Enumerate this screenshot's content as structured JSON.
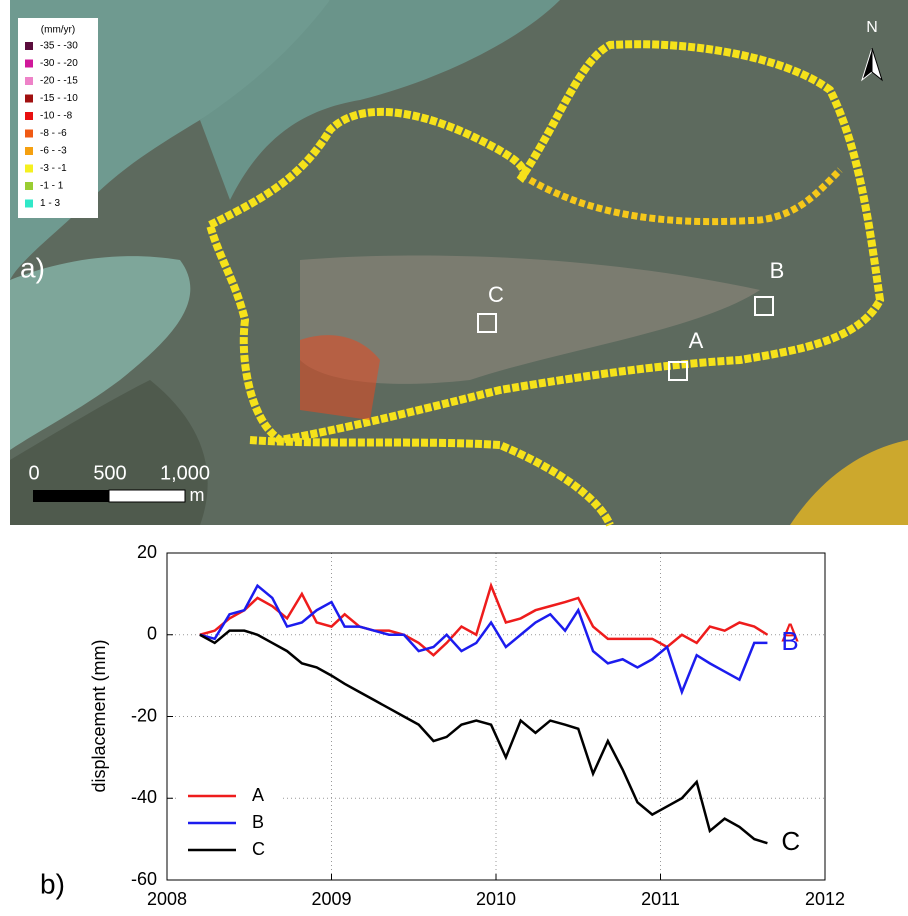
{
  "map": {
    "panel_label": "a)",
    "legend_title": "(mm/yr)",
    "legend_items": [
      {
        "label": "-35 - -30",
        "color": "#5a0c3c"
      },
      {
        "label": "-30 - -20",
        "color": "#d0189a"
      },
      {
        "label": "-20 - -15",
        "color": "#ee82c8"
      },
      {
        "label": "-15 - -10",
        "color": "#a01010"
      },
      {
        "label": "-10 - -8",
        "color": "#e81010"
      },
      {
        "label": "-8 - -6",
        "color": "#f05a14"
      },
      {
        "label": "-6 - -3",
        "color": "#f5a010"
      },
      {
        "label": "-3 - -1",
        "color": "#f5f020"
      },
      {
        "label": "-1 - 1",
        "color": "#9acd32"
      },
      {
        "label": "1 - 3",
        "color": "#30e8c8"
      }
    ],
    "site_labels": [
      "A",
      "B",
      "C"
    ],
    "scale_labels": [
      "0",
      "500",
      "1,000"
    ],
    "scale_unit": "m",
    "north": "N"
  },
  "chart_data": {
    "type": "line",
    "panel_label": "b)",
    "y_label": "displacement (mm)",
    "xlim": [
      2008,
      2012
    ],
    "xticks": [
      2008,
      2009,
      2010,
      2011,
      2012
    ],
    "ylim": [
      -60,
      20
    ],
    "yticks": [
      -60,
      -40,
      -20,
      0,
      20
    ],
    "grid": true,
    "legend": "lower left",
    "x": [
      2008.2,
      2008.29,
      2008.38,
      2008.47,
      2008.55,
      2008.64,
      2008.73,
      2008.82,
      2008.91,
      2009.0,
      2009.08,
      2009.17,
      2009.26,
      2009.35,
      2009.44,
      2009.53,
      2009.62,
      2009.7,
      2009.79,
      2009.88,
      2009.97,
      2010.06,
      2010.15,
      2010.24,
      2010.33,
      2010.42,
      2010.5,
      2010.59,
      2010.68,
      2010.77,
      2010.86,
      2010.95,
      2011.04,
      2011.13,
      2011.22,
      2011.3,
      2011.39,
      2011.48,
      2011.57,
      2011.65
    ],
    "series": [
      {
        "name": "A",
        "color": "#ee1c1c",
        "values": [
          0,
          1,
          4,
          6,
          9,
          7,
          4,
          10,
          3,
          2,
          5,
          2,
          1,
          1,
          0,
          -2,
          -5,
          -2,
          2,
          0,
          12,
          3,
          4,
          6,
          7,
          8,
          9,
          2,
          -1,
          -1,
          -1,
          -1,
          -3,
          0,
          -2,
          2,
          1,
          3,
          2,
          0
        ]
      },
      {
        "name": "B",
        "color": "#1c1cee",
        "values": [
          0,
          -1,
          5,
          6,
          12,
          9,
          2,
          3,
          6,
          8,
          2,
          2,
          1,
          0,
          0,
          -4,
          -3,
          0,
          -4,
          -2,
          3,
          -3,
          0,
          3,
          5,
          1,
          6,
          -4,
          -7,
          -6,
          -8,
          -6,
          -3,
          -14,
          -5,
          -7,
          -9,
          -11,
          -2,
          -2
        ]
      },
      {
        "name": "C",
        "color": "#000000",
        "values": [
          0,
          -2,
          1,
          1,
          0,
          -2,
          -4,
          -7,
          -8,
          -10,
          -12,
          -14,
          -16,
          -18,
          -20,
          -22,
          -26,
          -25,
          -22,
          -21,
          -22,
          -30,
          -21,
          -24,
          -21,
          -22,
          -23,
          -34,
          -26,
          -33,
          -41,
          -44,
          -42,
          -40,
          -36,
          -48,
          -45,
          -47,
          -50,
          -51
        ]
      }
    ]
  }
}
